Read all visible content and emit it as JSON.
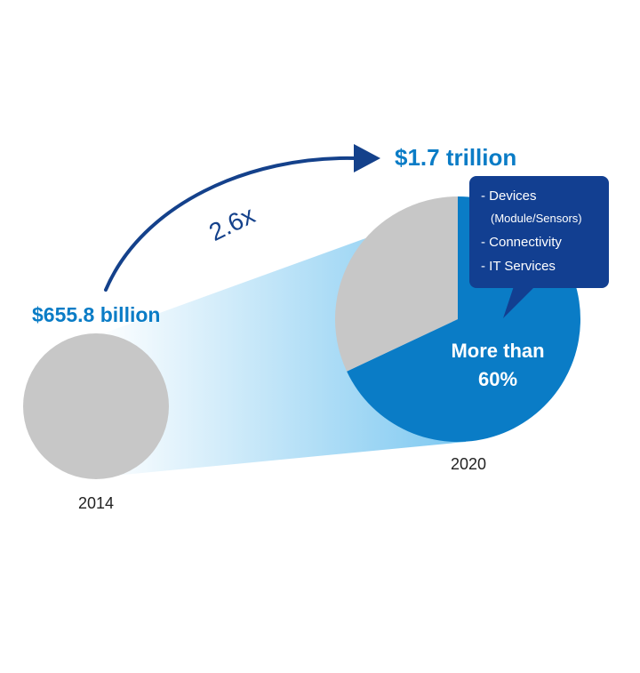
{
  "chart_data": {
    "type": "pie",
    "growth_label": "2.6x",
    "colors": {
      "share_highlight": "#0a7cc6",
      "share_rest": "#c7c7c7",
      "arrow": "#14418b",
      "callout": "#123f91",
      "value_text": "#0a7cc6",
      "year_text": "#222222"
    },
    "pies": [
      {
        "year": "2014",
        "value_label": "$655.8 billion",
        "value_usd_billion": 655.8,
        "slices": []
      },
      {
        "year": "2020",
        "value_label": "$1.7 trillion",
        "value_usd_billion": 1700,
        "slices": [
          {
            "share": 0.68,
            "label_lines": [
              "More than",
              "60%"
            ],
            "highlight": true
          },
          {
            "share": 0.32,
            "label_lines": [],
            "highlight": false
          }
        ]
      }
    ],
    "callout": {
      "items": [
        "- Devices",
        "(Module/Sensors)",
        "- Connectivity",
        "- IT Services"
      ]
    }
  }
}
